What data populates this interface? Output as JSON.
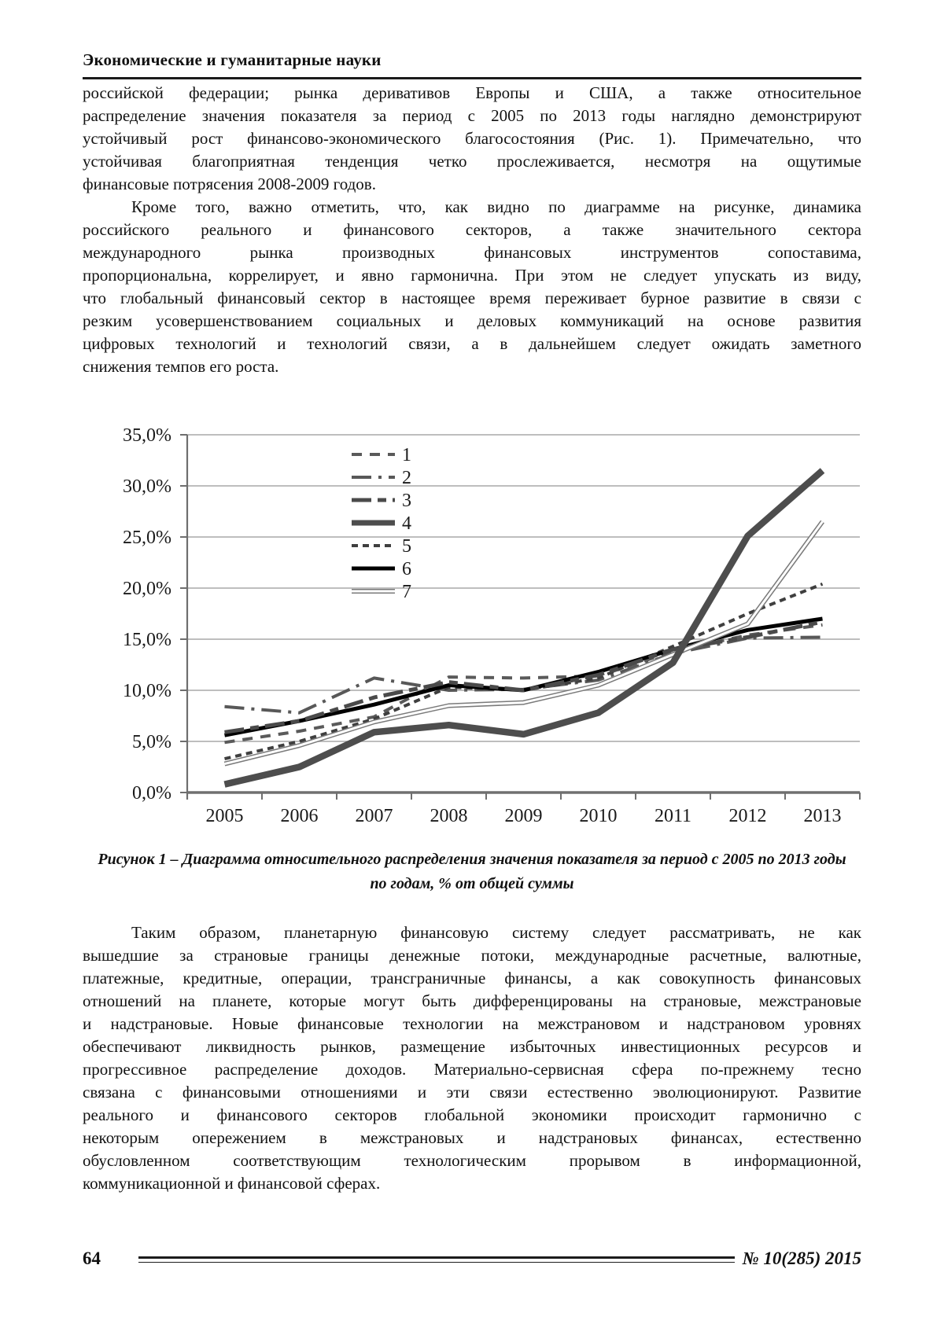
{
  "header": {
    "journal_title": "Экономические и гуманитарные науки"
  },
  "footer": {
    "page_number": "64",
    "issue": "№ 10(285) 2015"
  },
  "caption": {
    "line1": "Рисунок 1 – Диаграмма относительного распределения значения показателя за период с 2005 по 2013 годы",
    "line2": "по годам, % от общей суммы"
  },
  "paragraphs_top": [
    {
      "indent": false,
      "lines": [
        "российской федерации; рынка деривативов Европы и США, а также относительное",
        "распределение значения показателя за период с 2005 по 2013 годы наглядно демонстрируют",
        "устойчивый рост финансово-экономического благосостояния (Рис. 1). Примечательно, что",
        "устойчивая благоприятная тенденция четко прослеживается, несмотря на ощутимые",
        "финансовые потрясения 2008-2009 годов."
      ]
    },
    {
      "indent": true,
      "lines": [
        "Кроме того, важно отметить, что, как видно по диаграмме на рисунке, динамика",
        "российского реального и финансового секторов, а также значительного сектора",
        "международного рынка производных финансовых инструментов сопоставима,",
        "пропорциональна, коррелирует, и явно гармонична. При этом не следует упускать из виду,",
        "что глобальный финансовый сектор в настоящее время переживает бурное развитие в связи с",
        "резким усовершенствованием социальных и деловых коммуникаций на основе развития",
        "цифровых технологий и технологий связи, а в дальнейшем следует ожидать заметного",
        "снижения темпов его роста."
      ]
    }
  ],
  "paragraphs_bottom": [
    {
      "indent": true,
      "lines": [
        "Таким образом, планетарную финансовую систему следует рассматривать, не как",
        "вышедшие за страновые границы денежные потоки, международные расчетные, валютные,",
        "платежные, кредитные, операции, трансграничные финансы, а как совокупность финансовых",
        "отношений на планете, которые могут быть дифференцированы на страновые, межстрановые",
        "и надстрановые. Новые финансовые технологии на межстрановом и надстрановом уровнях",
        "обеспечивают ликвидность рынков, размещение избыточных инвестиционных ресурсов и",
        "прогрессивное распределение доходов. Материально-сервисная сфера по-прежнему тесно",
        "связана с финансовыми отношениями и эти связи естественно эволюционируют. Развитие",
        "реального и финансового секторов глобальной экономики происходит гармонично с",
        "некоторым опережением в межстрановых и надстрановых финансах, естественно",
        "обусловленном соответствующим технологическим прорывом в информационной,",
        "коммуникационной и финансовой сферах."
      ]
    }
  ],
  "chart_data": {
    "type": "line",
    "title": "",
    "xlabel": "",
    "ylabel": "",
    "x_tick_labels": [
      "2005",
      "2006",
      "2007",
      "2008",
      "2009",
      "2010",
      "2011",
      "2012",
      "2013"
    ],
    "y_tick_labels": [
      "0,0%",
      "5,0%",
      "10,0%",
      "15,0%",
      "20,0%",
      "25,0%",
      "30,0%",
      "35,0%"
    ],
    "ylim": [
      0,
      35
    ],
    "y_step": 5,
    "grid": true,
    "legend_position": "inside-top-center",
    "colors": {
      "gridline": "#a8a8a8",
      "axis": "#6e6e6e",
      "zero_line": "#707070"
    },
    "series": [
      {
        "name": "1",
        "style": "dash",
        "color": "#5a5a5a",
        "width": 4,
        "values": [
          4.9,
          6.0,
          7.4,
          11.3,
          11.2,
          11.4,
          13.8,
          15.4,
          16.4
        ]
      },
      {
        "name": "2",
        "style": "dashdot",
        "color": "#585858",
        "color2": "",
        "width": 4,
        "values": [
          8.4,
          7.8,
          11.2,
          10.0,
          10.1,
          11.0,
          13.6,
          15.1,
          15.2
        ]
      },
      {
        "name": "3",
        "style": "longdash",
        "color": "#4a4a4a",
        "width": 5,
        "values": [
          5.9,
          7.0,
          9.3,
          10.8,
          10.0,
          11.5,
          14.0,
          15.2,
          16.7
        ]
      },
      {
        "name": "4",
        "style": "solid",
        "color": "#4d4d4d",
        "width": 8.5,
        "values": [
          0.8,
          2.5,
          5.9,
          6.6,
          5.7,
          7.8,
          12.7,
          25.1,
          31.5
        ]
      },
      {
        "name": "5",
        "style": "dots",
        "color": "#3f3f3f",
        "width": 4,
        "values": [
          3.3,
          5.0,
          7.2,
          10.3,
          10.0,
          11.2,
          14.3,
          17.5,
          20.4
        ]
      },
      {
        "name": "6",
        "style": "solid",
        "color": "#000000",
        "width": 5,
        "values": [
          5.6,
          7.0,
          8.6,
          10.5,
          10.0,
          11.8,
          14.0,
          15.9,
          17.0
        ]
      },
      {
        "name": "7",
        "style": "double",
        "color": "#7a7a7a",
        "width": 6,
        "values": [
          2.8,
          4.6,
          6.9,
          8.5,
          8.8,
          10.5,
          13.5,
          16.5,
          26.5
        ]
      }
    ]
  }
}
